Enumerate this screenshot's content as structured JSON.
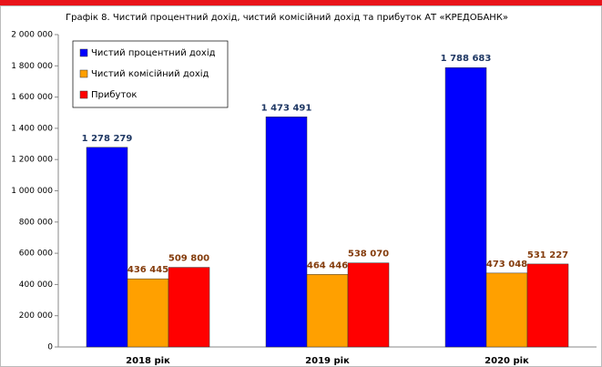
{
  "chart_data": {
    "type": "bar",
    "title": "Графік 8. Чистий процентний дохід, чистий комісійний дохід та прибуток АТ «КРЕДОБАНК»",
    "categories": [
      "2018 рік",
      "2019 рік",
      "2020 рік"
    ],
    "series": [
      {
        "name": "Чистий процентний дохід",
        "color": "#0000ff",
        "label_color": "#1f3864",
        "values": [
          1278279,
          1473491,
          1788683
        ],
        "value_labels": [
          "1 278 279",
          "1 473 491",
          "1 788 683"
        ]
      },
      {
        "name": "Чистий комісійний дохід",
        "color": "#ffa000",
        "label_color": "#843c0c",
        "values": [
          436445,
          464446,
          473048
        ],
        "value_labels": [
          "436 445",
          "464 446",
          "473 048"
        ]
      },
      {
        "name": "Прибуток",
        "color": "#ff0000",
        "label_color": "#843c0c",
        "values": [
          509800,
          538070,
          531227
        ],
        "value_labels": [
          "509 800",
          "538 070",
          "531 227"
        ]
      }
    ],
    "ylim": [
      0,
      2000000
    ],
    "yticks": [
      0,
      {
        "value": 200000,
        "label": "200 000"
      },
      {
        "value": 400000,
        "label": "400 000"
      },
      {
        "value": 600000,
        "label": "600 000"
      },
      {
        "value": 800000,
        "label": "800 000"
      },
      {
        "value": 1000000,
        "label": "1 000 000"
      },
      {
        "value": 1200000,
        "label": "1 200 000"
      },
      {
        "value": 1400000,
        "label": "1 400 000"
      },
      {
        "value": 1600000,
        "label": "1 600 000"
      },
      {
        "value": 1800000,
        "label": "1 800 000"
      },
      {
        "value": 2000000,
        "label": "2 000 000"
      }
    ],
    "grid": false,
    "legend": "top-left"
  }
}
